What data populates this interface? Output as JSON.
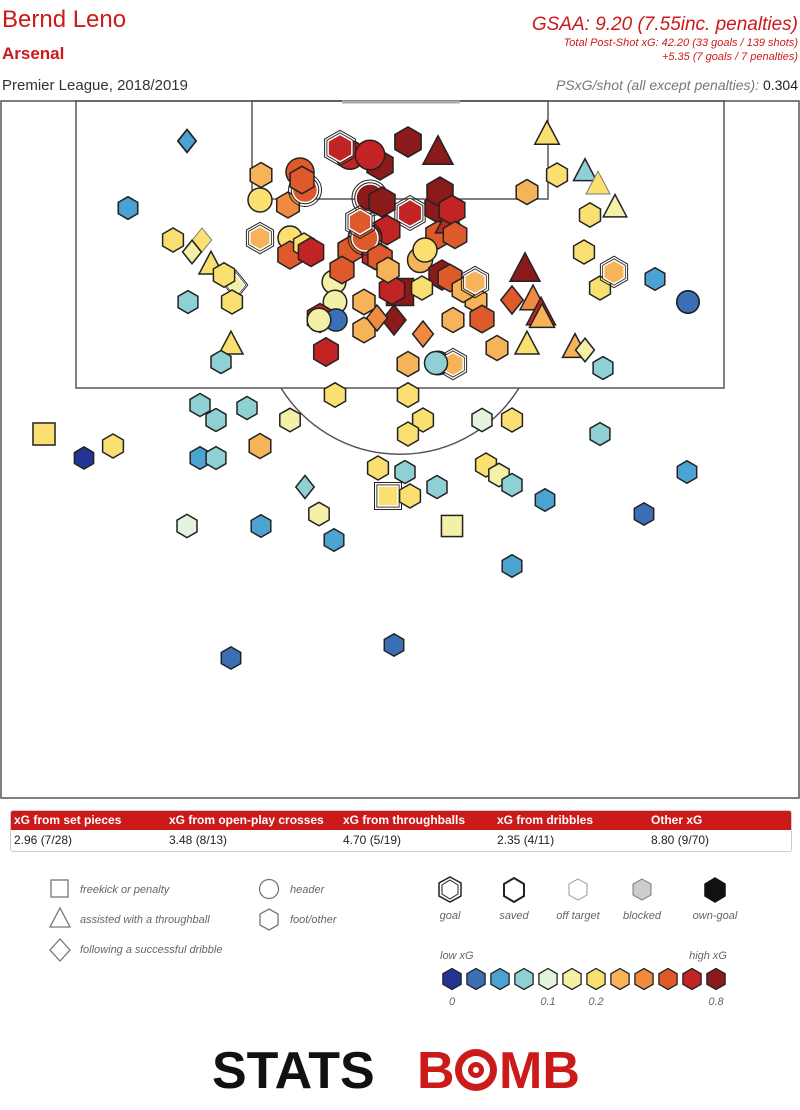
{
  "header": {
    "player": "Bernd Leno",
    "team": "Arsenal",
    "competition": "Premier League, 2018/2019",
    "gsaa": "GSAA: 9.20 (7.55inc. penalties)",
    "total_psxg": "Total Post-Shot xG: 42.20 (33 goals / 139 shots)",
    "penalties": "+5.35 (7 goals / 7 penalties)",
    "psxg_label": "PSxG/shot (all except penalties):",
    "psxg_value": "0.304"
  },
  "xg_table": {
    "headers": [
      "xG from set pieces",
      "xG from open-play crosses",
      "xG from throughballs",
      "xG from dribbles",
      "Other xG"
    ],
    "values": [
      "2.96 (7/28)",
      "3.48 (8/13)",
      "4.70 (5/19)",
      "2.35 (4/11)",
      "8.80 (9/70)"
    ]
  },
  "legend": {
    "shape_types": [
      "freekick or penalty",
      "assisted with a throughball",
      "following a successful dribble"
    ],
    "body_types": [
      "header",
      "foot/other"
    ],
    "outcomes": [
      "goal",
      "saved",
      "off target",
      "blocked",
      "own-goal"
    ],
    "scale_low": "low xG",
    "scale_high": "high xG",
    "scale_ticks": [
      "0",
      "0.1",
      "0.2",
      "0.8"
    ],
    "scale_colors": [
      "#253494",
      "#3a6fb5",
      "#4aa3d1",
      "#8fd0d4",
      "#e4f4dc",
      "#f4f0a8",
      "#f9e070",
      "#f6b35a",
      "#ef8a40",
      "#df5a2a",
      "#c22323",
      "#8b1a1a"
    ]
  },
  "colors": {
    "accent": "#cc1a1a",
    "q1": "#253494",
    "q2": "#3a6fb5",
    "q3": "#4aa3d1",
    "q4": "#8fd0d4",
    "q5": "#e4f4dc",
    "q6": "#f4f0a8",
    "q7": "#f9e070",
    "q8": "#f6b35a",
    "q9": "#ef8a40",
    "q10": "#df5a2a",
    "q11": "#c22323",
    "q12": "#8b1a1a"
  },
  "logo": {
    "part1": "STATS",
    "part2": "B",
    "part3": "MB"
  },
  "chart_data": {
    "type": "scatter",
    "description_fields": [
      "x",
      "y",
      "xg",
      "shape",
      "outcome"
    ],
    "x_range": [
      0,
      80
    ],
    "y_range": [
      0,
      70
    ],
    "shots": [
      {
        "x": 18.7,
        "y": 4.1,
        "xg": 0.12,
        "shape": "dribble",
        "outcome": "saved"
      },
      {
        "x": 12.8,
        "y": 10.8,
        "xg": 0.03,
        "shape": "foot",
        "outcome": "saved"
      },
      {
        "x": 26.1,
        "y": 7.5,
        "xg": 0.3,
        "shape": "foot",
        "outcome": "saved"
      },
      {
        "x": 30.0,
        "y": 7.2,
        "xg": 0.6,
        "shape": "header",
        "outcome": "saved"
      },
      {
        "x": 35.0,
        "y": 5.5,
        "xg": 0.65,
        "shape": "header",
        "outcome": "saved"
      },
      {
        "x": 38.0,
        "y": 6.5,
        "xg": 0.9,
        "shape": "foot",
        "outcome": "saved"
      },
      {
        "x": 40.8,
        "y": 4.2,
        "xg": 0.95,
        "shape": "foot",
        "outcome": "saved"
      },
      {
        "x": 43.8,
        "y": 5.3,
        "xg": 0.85,
        "shape": "throughball",
        "outcome": "saved"
      },
      {
        "x": 54.7,
        "y": 3.5,
        "xg": 0.25,
        "shape": "throughball",
        "outcome": "saved"
      },
      {
        "x": 55.7,
        "y": 7.5,
        "xg": 0.2,
        "shape": "foot",
        "outcome": "saved"
      },
      {
        "x": 58.5,
        "y": 7.2,
        "xg": 0.1,
        "shape": "throughball",
        "outcome": "saved"
      },
      {
        "x": 52.7,
        "y": 9.2,
        "xg": 0.3,
        "shape": "foot",
        "outcome": "saved"
      },
      {
        "x": 59.8,
        "y": 8.5,
        "xg": 0.2,
        "shape": "throughball",
        "outcome": "off"
      },
      {
        "x": 61.5,
        "y": 10.8,
        "xg": 0.15,
        "shape": "throughball",
        "outcome": "saved"
      },
      {
        "x": 59.0,
        "y": 11.5,
        "xg": 0.22,
        "shape": "foot",
        "outcome": "saved"
      },
      {
        "x": 26.0,
        "y": 10.0,
        "xg": 0.2,
        "shape": "header",
        "outcome": "saved"
      },
      {
        "x": 28.8,
        "y": 10.5,
        "xg": 0.4,
        "shape": "foot",
        "outcome": "saved"
      },
      {
        "x": 30.5,
        "y": 9.0,
        "xg": 0.5,
        "shape": "header",
        "outcome": "goal"
      },
      {
        "x": 17.3,
        "y": 14.0,
        "xg": 0.2,
        "shape": "foot",
        "outcome": "saved"
      },
      {
        "x": 20.2,
        "y": 14.0,
        "xg": 0.2,
        "shape": "dribble",
        "outcome": "off"
      },
      {
        "x": 19.2,
        "y": 15.2,
        "xg": 0.15,
        "shape": "dribble",
        "outcome": "saved"
      },
      {
        "x": 26.0,
        "y": 13.8,
        "xg": 0.35,
        "shape": "foot",
        "outcome": "goal"
      },
      {
        "x": 29.0,
        "y": 13.8,
        "xg": 0.2,
        "shape": "header",
        "outcome": "saved"
      },
      {
        "x": 29.0,
        "y": 15.5,
        "xg": 0.6,
        "shape": "foot",
        "outcome": "saved"
      },
      {
        "x": 21.1,
        "y": 16.5,
        "xg": 0.2,
        "shape": "throughball",
        "outcome": "saved"
      },
      {
        "x": 23.6,
        "y": 18.5,
        "xg": 0.15,
        "shape": "dribble",
        "outcome": "goal"
      },
      {
        "x": 22.4,
        "y": 17.5,
        "xg": 0.25,
        "shape": "foot",
        "outcome": "saved"
      },
      {
        "x": 18.8,
        "y": 20.2,
        "xg": 0.08,
        "shape": "foot",
        "outcome": "saved"
      },
      {
        "x": 23.2,
        "y": 20.2,
        "xg": 0.2,
        "shape": "foot",
        "outcome": "saved"
      },
      {
        "x": 23.1,
        "y": 24.5,
        "xg": 0.2,
        "shape": "throughball",
        "outcome": "saved"
      },
      {
        "x": 22.1,
        "y": 26.2,
        "xg": 0.1,
        "shape": "foot",
        "outcome": "saved"
      },
      {
        "x": 33.4,
        "y": 18.2,
        "xg": 0.18,
        "shape": "header",
        "outcome": "saved"
      },
      {
        "x": 33.5,
        "y": 20.2,
        "xg": 0.15,
        "shape": "header",
        "outcome": "saved"
      },
      {
        "x": 36.4,
        "y": 20.2,
        "xg": 0.35,
        "shape": "foot",
        "outcome": "saved"
      },
      {
        "x": 32.0,
        "y": 21.8,
        "xg": 0.7,
        "shape": "foot",
        "outcome": "saved"
      },
      {
        "x": 33.6,
        "y": 22.0,
        "xg": 0.03,
        "shape": "header",
        "outcome": "saved"
      },
      {
        "x": 40.0,
        "y": 19.2,
        "xg": 0.9,
        "shape": "freekick",
        "outcome": "saved"
      },
      {
        "x": 39.4,
        "y": 22.0,
        "xg": 0.9,
        "shape": "dribble",
        "outcome": "saved"
      },
      {
        "x": 42.3,
        "y": 23.4,
        "xg": 0.4,
        "shape": "dribble",
        "outcome": "saved"
      },
      {
        "x": 40.8,
        "y": 26.4,
        "xg": 0.3,
        "shape": "foot",
        "outcome": "saved"
      },
      {
        "x": 43.8,
        "y": 26.3,
        "xg": 0.15,
        "shape": "header",
        "outcome": "saved"
      },
      {
        "x": 45.3,
        "y": 26.4,
        "xg": 0.35,
        "shape": "foot",
        "outcome": "goal"
      },
      {
        "x": 45.3,
        "y": 22.0,
        "xg": 0.3,
        "shape": "foot",
        "outcome": "saved"
      },
      {
        "x": 47.6,
        "y": 20.0,
        "xg": 0.3,
        "shape": "foot",
        "outcome": "saved"
      },
      {
        "x": 48.2,
        "y": 21.9,
        "xg": 0.55,
        "shape": "foot",
        "outcome": "saved"
      },
      {
        "x": 49.7,
        "y": 24.8,
        "xg": 0.3,
        "shape": "foot",
        "outcome": "saved"
      },
      {
        "x": 51.2,
        "y": 20.0,
        "xg": 0.6,
        "shape": "dribble",
        "outcome": "saved"
      },
      {
        "x": 52.5,
        "y": 17.0,
        "xg": 0.8,
        "shape": "throughball",
        "outcome": "saved"
      },
      {
        "x": 53.3,
        "y": 20.0,
        "xg": 0.4,
        "shape": "throughball",
        "outcome": "saved"
      },
      {
        "x": 54.1,
        "y": 21.4,
        "xg": 0.7,
        "shape": "throughball",
        "outcome": "saved"
      },
      {
        "x": 54.2,
        "y": 21.8,
        "xg": 0.3,
        "shape": "throughball",
        "outcome": "saved"
      },
      {
        "x": 52.7,
        "y": 24.5,
        "xg": 0.2,
        "shape": "throughball",
        "outcome": "saved"
      },
      {
        "x": 57.5,
        "y": 24.8,
        "xg": 0.3,
        "shape": "throughball",
        "outcome": "saved"
      },
      {
        "x": 58.5,
        "y": 25.0,
        "xg": 0.15,
        "shape": "dribble",
        "outcome": "saved"
      },
      {
        "x": 60.3,
        "y": 26.8,
        "xg": 0.08,
        "shape": "foot",
        "outcome": "saved"
      },
      {
        "x": 65.5,
        "y": 17.9,
        "xg": 0.06,
        "shape": "foot",
        "outcome": "saved"
      },
      {
        "x": 68.8,
        "y": 20.2,
        "xg": 0.04,
        "shape": "header",
        "outcome": "saved"
      },
      {
        "x": 58.4,
        "y": 15.2,
        "xg": 0.2,
        "shape": "foot",
        "outcome": "saved"
      },
      {
        "x": 60.0,
        "y": 18.8,
        "xg": 0.2,
        "shape": "foot",
        "outcome": "saved"
      },
      {
        "x": 61.4,
        "y": 17.2,
        "xg": 0.35,
        "shape": "foot",
        "outcome": "goal"
      },
      {
        "x": 32.6,
        "y": 25.2,
        "xg": 0.65,
        "shape": "foot",
        "outcome": "saved"
      },
      {
        "x": 31.9,
        "y": 22.0,
        "xg": 0.15,
        "shape": "header",
        "outcome": "saved"
      },
      {
        "x": 36.4,
        "y": 23.0,
        "xg": 0.35,
        "shape": "foot",
        "outcome": "saved"
      },
      {
        "x": 33.5,
        "y": 29.5,
        "xg": 0.25,
        "shape": "foot",
        "outcome": "saved"
      },
      {
        "x": 40.8,
        "y": 29.5,
        "xg": 0.25,
        "shape": "foot",
        "outcome": "saved"
      },
      {
        "x": 43.6,
        "y": 26.3,
        "xg": 0.1,
        "shape": "header",
        "outcome": "saved"
      },
      {
        "x": 20.0,
        "y": 30.5,
        "xg": 0.1,
        "shape": "foot",
        "outcome": "saved"
      },
      {
        "x": 24.7,
        "y": 30.8,
        "xg": 0.1,
        "shape": "foot",
        "outcome": "saved"
      },
      {
        "x": 21.6,
        "y": 32.0,
        "xg": 0.1,
        "shape": "foot",
        "outcome": "saved"
      },
      {
        "x": 29.0,
        "y": 32.0,
        "xg": 0.15,
        "shape": "foot",
        "outcome": "saved"
      },
      {
        "x": 42.3,
        "y": 32.0,
        "xg": 0.2,
        "shape": "foot",
        "outcome": "saved"
      },
      {
        "x": 40.8,
        "y": 33.4,
        "xg": 0.2,
        "shape": "foot",
        "outcome": "saved"
      },
      {
        "x": 48.2,
        "y": 32.0,
        "xg": 0.12,
        "shape": "foot",
        "outcome": "saved"
      },
      {
        "x": 51.2,
        "y": 32.0,
        "xg": 0.2,
        "shape": "foot",
        "outcome": "saved"
      },
      {
        "x": 60.0,
        "y": 33.4,
        "xg": 0.08,
        "shape": "foot",
        "outcome": "saved"
      },
      {
        "x": 26.0,
        "y": 34.6,
        "xg": 0.3,
        "shape": "foot",
        "outcome": "saved"
      },
      {
        "x": 4.4,
        "y": 33.4,
        "xg": 0.25,
        "shape": "freekick",
        "outcome": "saved"
      },
      {
        "x": 11.3,
        "y": 34.6,
        "xg": 0.2,
        "shape": "foot",
        "outcome": "saved"
      },
      {
        "x": 8.4,
        "y": 35.8,
        "xg": 0.01,
        "shape": "foot",
        "outcome": "saved"
      },
      {
        "x": 20.0,
        "y": 35.8,
        "xg": 0.06,
        "shape": "foot",
        "outcome": "saved"
      },
      {
        "x": 21.6,
        "y": 35.8,
        "xg": 0.08,
        "shape": "foot",
        "outcome": "saved"
      },
      {
        "x": 37.8,
        "y": 36.8,
        "xg": 0.2,
        "shape": "foot",
        "outcome": "saved"
      },
      {
        "x": 40.5,
        "y": 37.2,
        "xg": 0.1,
        "shape": "foot",
        "outcome": "saved"
      },
      {
        "x": 48.6,
        "y": 36.5,
        "xg": 0.2,
        "shape": "foot",
        "outcome": "saved"
      },
      {
        "x": 49.9,
        "y": 37.5,
        "xg": 0.15,
        "shape": "foot",
        "outcome": "saved"
      },
      {
        "x": 51.2,
        "y": 38.5,
        "xg": 0.1,
        "shape": "foot",
        "outcome": "saved"
      },
      {
        "x": 43.7,
        "y": 38.7,
        "xg": 0.1,
        "shape": "foot",
        "outcome": "saved"
      },
      {
        "x": 30.5,
        "y": 38.7,
        "xg": 0.1,
        "shape": "dribble",
        "outcome": "saved"
      },
      {
        "x": 38.8,
        "y": 39.6,
        "xg": 0.2,
        "shape": "freekick",
        "outcome": "goal"
      },
      {
        "x": 41.0,
        "y": 39.6,
        "xg": 0.2,
        "shape": "foot",
        "outcome": "saved"
      },
      {
        "x": 68.7,
        "y": 37.2,
        "xg": 0.05,
        "shape": "foot",
        "outcome": "saved"
      },
      {
        "x": 54.5,
        "y": 40.0,
        "xg": 0.05,
        "shape": "foot",
        "outcome": "saved"
      },
      {
        "x": 31.9,
        "y": 41.4,
        "xg": 0.15,
        "shape": "foot",
        "outcome": "saved"
      },
      {
        "x": 18.7,
        "y": 42.6,
        "xg": 0.12,
        "shape": "foot",
        "outcome": "saved"
      },
      {
        "x": 26.1,
        "y": 42.6,
        "xg": 0.06,
        "shape": "foot",
        "outcome": "saved"
      },
      {
        "x": 33.4,
        "y": 44.0,
        "xg": 0.06,
        "shape": "foot",
        "outcome": "saved"
      },
      {
        "x": 45.2,
        "y": 42.6,
        "xg": 0.15,
        "shape": "freekick",
        "outcome": "saved"
      },
      {
        "x": 64.4,
        "y": 41.4,
        "xg": 0.03,
        "shape": "foot",
        "outcome": "saved"
      },
      {
        "x": 51.2,
        "y": 46.6,
        "xg": 0.06,
        "shape": "foot",
        "outcome": "saved"
      },
      {
        "x": 23.1,
        "y": 55.8,
        "xg": 0.03,
        "shape": "foot",
        "outcome": "saved"
      },
      {
        "x": 39.4,
        "y": 54.5,
        "xg": 0.03,
        "shape": "foot",
        "outcome": "saved"
      },
      {
        "x": 18.7,
        "y": 4.1,
        "xg": 0.07,
        "shape": "dribble",
        "outcome": "saved"
      },
      {
        "x": 12.8,
        "y": 10.8,
        "xg": 0.05,
        "shape": "foot",
        "outcome": "saved"
      },
      {
        "x": 68.8,
        "y": 20.2,
        "xg": 0.04,
        "shape": "header",
        "outcome": "saved"
      },
      {
        "x": 40.8,
        "y": 4.2,
        "xg": 0.95,
        "shape": "foot",
        "outcome": "saved"
      },
      {
        "x": 37.0,
        "y": 9.8,
        "xg": 0.9,
        "shape": "header",
        "outcome": "goal"
      },
      {
        "x": 38.2,
        "y": 10.2,
        "xg": 0.85,
        "shape": "foot",
        "outcome": "saved"
      },
      {
        "x": 41.0,
        "y": 11.3,
        "xg": 0.7,
        "shape": "foot",
        "outcome": "goal"
      },
      {
        "x": 43.8,
        "y": 10.8,
        "xg": 0.8,
        "shape": "foot",
        "outcome": "saved"
      },
      {
        "x": 38.7,
        "y": 13.0,
        "xg": 0.75,
        "shape": "foot",
        "outcome": "saved"
      },
      {
        "x": 36.5,
        "y": 14.0,
        "xg": 0.55,
        "shape": "header",
        "outcome": "goal"
      },
      {
        "x": 43.8,
        "y": 13.5,
        "xg": 0.6,
        "shape": "foot",
        "outcome": "saved"
      },
      {
        "x": 42.0,
        "y": 16.0,
        "xg": 0.3,
        "shape": "header",
        "outcome": "saved"
      },
      {
        "x": 44.2,
        "y": 17.5,
        "xg": 0.8,
        "shape": "foot",
        "outcome": "saved"
      },
      {
        "x": 45.0,
        "y": 12.2,
        "xg": 0.7,
        "shape": "throughball",
        "outcome": "saved"
      },
      {
        "x": 35.0,
        "y": 15.0,
        "xg": 0.55,
        "shape": "foot",
        "outcome": "saved"
      },
      {
        "x": 37.5,
        "y": 15.5,
        "xg": 0.7,
        "shape": "foot",
        "outcome": "saved"
      },
      {
        "x": 34.2,
        "y": 17.0,
        "xg": 0.55,
        "shape": "foot",
        "outcome": "saved"
      },
      {
        "x": 36.5,
        "y": 13.8,
        "xg": 0.6,
        "shape": "header",
        "outcome": "goal"
      },
      {
        "x": 30.4,
        "y": 14.5,
        "xg": 0.2,
        "shape": "foot",
        "outcome": "saved"
      },
      {
        "x": 34.0,
        "y": 4.8,
        "xg": 0.75,
        "shape": "foot",
        "outcome": "goal"
      },
      {
        "x": 37.0,
        "y": 5.5,
        "xg": 0.75,
        "shape": "header",
        "outcome": "saved"
      },
      {
        "x": 30.2,
        "y": 8.0,
        "xg": 0.55,
        "shape": "foot",
        "outcome": "saved"
      },
      {
        "x": 31.1,
        "y": 15.2,
        "xg": 0.7,
        "shape": "foot",
        "outcome": "saved"
      },
      {
        "x": 38.0,
        "y": 15.8,
        "xg": 0.6,
        "shape": "foot",
        "outcome": "saved"
      },
      {
        "x": 42.5,
        "y": 15.0,
        "xg": 0.2,
        "shape": "header",
        "outcome": "saved"
      },
      {
        "x": 37.7,
        "y": 21.8,
        "xg": 0.4,
        "shape": "dribble",
        "outcome": "saved"
      },
      {
        "x": 36.0,
        "y": 12.2,
        "xg": 0.5,
        "shape": "foot",
        "outcome": "goal"
      },
      {
        "x": 39.2,
        "y": 19.0,
        "xg": 0.7,
        "shape": "foot",
        "outcome": "saved"
      },
      {
        "x": 45.0,
        "y": 17.8,
        "xg": 0.55,
        "shape": "foot",
        "outcome": "saved"
      },
      {
        "x": 46.3,
        "y": 19.0,
        "xg": 0.3,
        "shape": "foot",
        "outcome": "saved"
      },
      {
        "x": 47.5,
        "y": 18.2,
        "xg": 0.35,
        "shape": "foot",
        "outcome": "goal"
      },
      {
        "x": 44.0,
        "y": 9.2,
        "xg": 0.8,
        "shape": "foot",
        "outcome": "saved"
      },
      {
        "x": 45.2,
        "y": 11.0,
        "xg": 0.75,
        "shape": "foot",
        "outcome": "saved"
      },
      {
        "x": 45.5,
        "y": 13.5,
        "xg": 0.5,
        "shape": "foot",
        "outcome": "saved"
      },
      {
        "x": 38.8,
        "y": 17.0,
        "xg": 0.35,
        "shape": "foot",
        "outcome": "saved"
      },
      {
        "x": 42.2,
        "y": 18.8,
        "xg": 0.2,
        "shape": "foot",
        "outcome": "saved"
      }
    ]
  }
}
